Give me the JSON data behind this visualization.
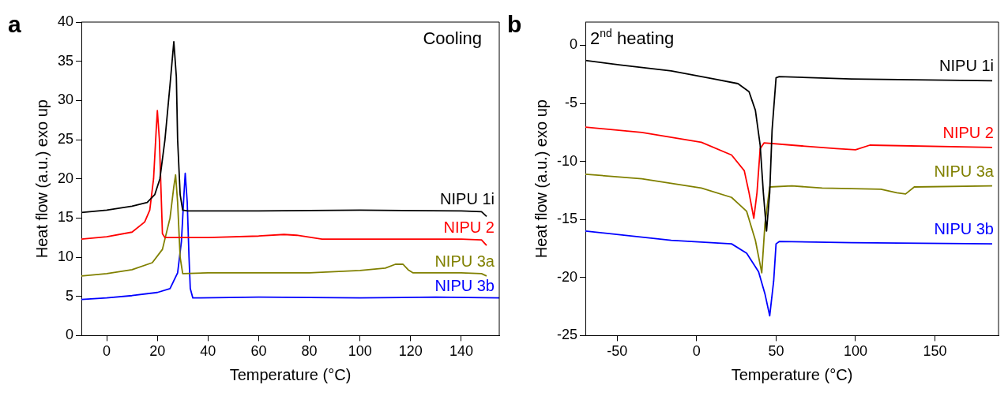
{
  "chart_data": [
    {
      "type": "line",
      "title": "a",
      "xlabel": "Temperature (°C)",
      "ylabel": "Heat flow (a.u.) exo up",
      "annotations": [
        "Cooling"
      ],
      "xlim": [
        -10,
        155
      ],
      "ylim": [
        0,
        40
      ],
      "xticks": [
        0,
        20,
        40,
        60,
        80,
        100,
        120,
        140
      ],
      "yticks": [
        0,
        5,
        10,
        15,
        20,
        25,
        30,
        35,
        40
      ],
      "marker": "none",
      "series": [
        {
          "name": "NIPU 1i",
          "color": "#000000",
          "x": [
            -10,
            0,
            10,
            16,
            19,
            21,
            23,
            25,
            26.5,
            27.5,
            28,
            29,
            30,
            32,
            60,
            100,
            140,
            148,
            150
          ],
          "values": [
            15.7,
            16.0,
            16.5,
            17.0,
            18,
            20,
            25,
            32,
            37.5,
            33,
            25,
            18,
            16,
            15.9,
            15.9,
            16.0,
            15.9,
            15.8,
            15.2
          ]
        },
        {
          "name": "NIPU 2",
          "color": "#ff0000",
          "x": [
            -10,
            0,
            10,
            15,
            17,
            18.5,
            19.5,
            20,
            20.8,
            21.5,
            22,
            23,
            40,
            60,
            70,
            75,
            85,
            100,
            140,
            148,
            150
          ],
          "values": [
            12.3,
            12.6,
            13.2,
            14.5,
            16,
            20,
            26,
            28.7,
            25,
            18,
            13,
            12.5,
            12.5,
            12.7,
            12.9,
            12.8,
            12.3,
            12.3,
            12.3,
            12.2,
            11.5
          ]
        },
        {
          "name": "NIPU 3a",
          "color": "#808000",
          "x": [
            -10,
            0,
            10,
            18,
            22,
            25,
            26.5,
            27.2,
            28,
            29,
            30,
            40,
            80,
            100,
            110,
            114,
            117,
            119,
            121,
            140,
            148,
            150
          ],
          "values": [
            7.6,
            7.9,
            8.4,
            9.3,
            11,
            15,
            19,
            20.5,
            17,
            10,
            7.9,
            8,
            8.0,
            8.3,
            8.6,
            9.1,
            9.1,
            8.4,
            8.0,
            8.0,
            7.9,
            7.6
          ]
        },
        {
          "name": "NIPU 3b",
          "color": "#0000ff",
          "x": [
            -10,
            0,
            10,
            20,
            25,
            28,
            29.5,
            30.5,
            31,
            31.8,
            32.5,
            33,
            34,
            60,
            100,
            130,
            155
          ],
          "values": [
            4.6,
            4.8,
            5.1,
            5.5,
            6.0,
            8,
            12,
            18,
            20.7,
            17,
            10,
            6,
            4.8,
            4.9,
            4.8,
            4.9,
            4.8
          ]
        }
      ]
    },
    {
      "type": "line",
      "title": "b",
      "xlabel": "Temperature (°C)",
      "ylabel": "Heat flow (a.u.) exo up",
      "annotations": [
        "2$^{nd}$ heating"
      ],
      "xlim": [
        -70,
        190
      ],
      "ylim": [
        -25,
        2
      ],
      "xticks": [
        -50,
        0,
        50,
        100,
        150
      ],
      "yticks": [
        -25,
        -20,
        -15,
        -10,
        -5,
        0
      ],
      "marker": "none",
      "series": [
        {
          "name": "NIPU 1i",
          "color": "#000000",
          "x": [
            -70,
            -48,
            -16,
            11,
            26,
            33,
            37,
            40,
            42,
            44,
            46,
            47.5,
            50,
            52,
            97.5,
            186
          ],
          "values": [
            -1.3,
            -1.7,
            -2.2,
            -2.9,
            -3.3,
            -4.0,
            -5.6,
            -8.6,
            -12.7,
            -16.0,
            -12.7,
            -7.3,
            -2.8,
            -2.7,
            -2.9,
            -3.05
          ]
        },
        {
          "name": "NIPU 2",
          "color": "#ff0000",
          "x": [
            -70,
            -34.5,
            3,
            22,
            30,
            33,
            36,
            38,
            40,
            42.5,
            60,
            88,
            100,
            109,
            186
          ],
          "values": [
            -7.05,
            -7.5,
            -8.35,
            -9.45,
            -10.8,
            -12.7,
            -14.9,
            -12.7,
            -8.9,
            -8.4,
            -8.6,
            -8.9,
            -9.0,
            -8.6,
            -8.8
          ]
        },
        {
          "name": "NIPU 3a",
          "color": "#808000",
          "x": [
            -70,
            -34.5,
            3,
            22,
            31.5,
            37,
            41,
            43,
            46,
            60,
            79,
            116,
            126,
            131.5,
            137,
            186
          ],
          "values": [
            -11.1,
            -11.5,
            -12.3,
            -13.1,
            -14.3,
            -16.8,
            -19.6,
            -15.4,
            -12.2,
            -12.1,
            -12.3,
            -12.4,
            -12.7,
            -12.8,
            -12.2,
            -12.1
          ]
        },
        {
          "name": "NIPU 3b",
          "color": "#0000ff",
          "x": [
            -70,
            -16,
            22,
            31.5,
            39,
            43,
            46,
            48.5,
            50,
            52,
            97.5,
            186
          ],
          "values": [
            -16.0,
            -16.8,
            -17.1,
            -17.9,
            -19.5,
            -21.4,
            -23.3,
            -20.3,
            -17.1,
            -16.9,
            -17.0,
            -17.1
          ]
        }
      ]
    }
  ]
}
